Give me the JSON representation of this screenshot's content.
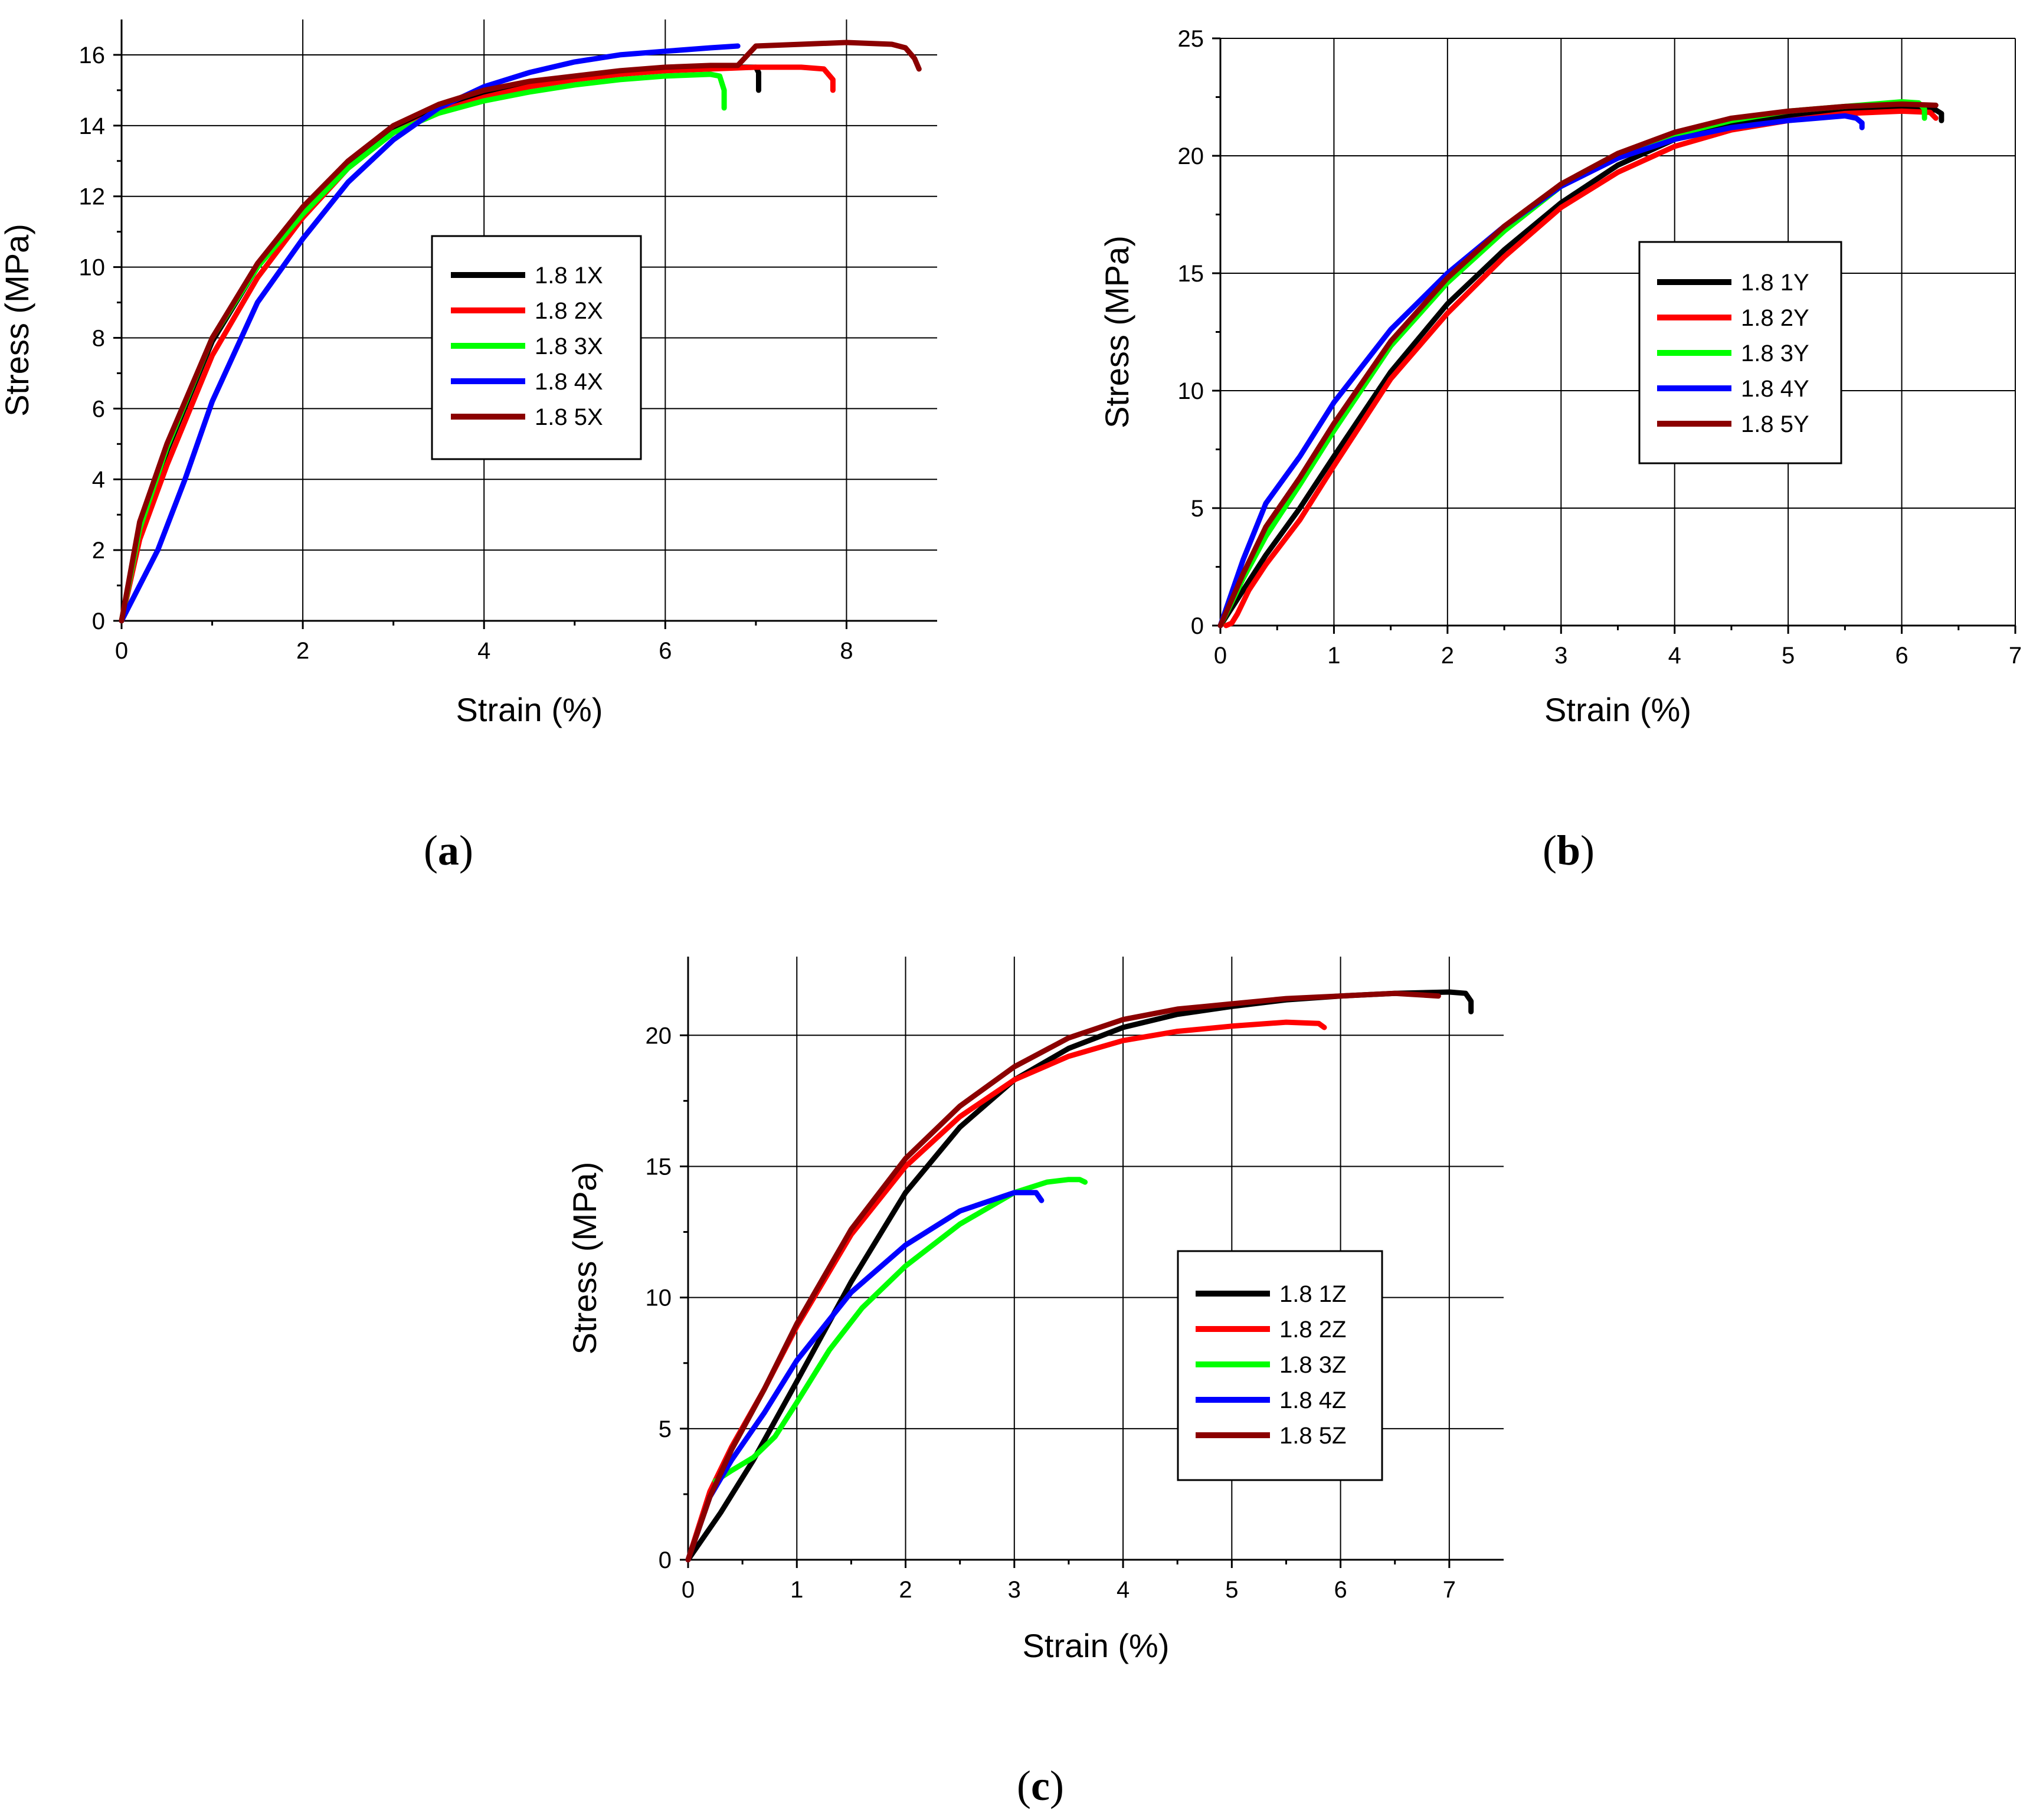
{
  "chart_data": [
    {
      "type": "line",
      "panel": "a",
      "caption_letter": "a",
      "xlabel": "Strain (%)",
      "ylabel": "Stress (MPa)",
      "xlim": [
        0,
        9
      ],
      "ylim": [
        0,
        17
      ],
      "xticks": [
        0,
        2,
        4,
        6,
        8
      ],
      "yticks": [
        0,
        2,
        4,
        6,
        8,
        10,
        12,
        14,
        16
      ],
      "grid": true,
      "legend_position": "center-right",
      "series": [
        {
          "name": "1.8 1X",
          "color": "#000000",
          "x": [
            0,
            0.2,
            0.5,
            1.0,
            1.5,
            2.0,
            2.5,
            3.0,
            3.5,
            4.0,
            4.5,
            5.0,
            5.5,
            6.0,
            6.5,
            7.0,
            7.03,
            7.03
          ],
          "y": [
            0,
            2.5,
            4.8,
            7.9,
            10.0,
            11.6,
            12.9,
            13.9,
            14.5,
            14.9,
            15.15,
            15.35,
            15.5,
            15.6,
            15.65,
            15.65,
            15.5,
            15.0
          ]
        },
        {
          "name": "1.8 2X",
          "color": "#ff0000",
          "x": [
            0,
            0.2,
            0.5,
            1.0,
            1.5,
            2.0,
            2.5,
            3.0,
            3.5,
            4.0,
            4.5,
            5.0,
            5.5,
            6.0,
            6.5,
            7.0,
            7.5,
            7.75,
            7.85,
            7.85
          ],
          "y": [
            0,
            2.3,
            4.4,
            7.5,
            9.7,
            11.4,
            12.8,
            13.8,
            14.4,
            14.8,
            15.1,
            15.3,
            15.45,
            15.55,
            15.6,
            15.65,
            15.65,
            15.6,
            15.3,
            15.0
          ]
        },
        {
          "name": "1.8 3X",
          "color": "#00ff00",
          "x": [
            0,
            0.2,
            0.5,
            1.0,
            1.5,
            2.0,
            2.5,
            3.0,
            3.5,
            4.0,
            4.5,
            5.0,
            5.5,
            6.0,
            6.5,
            6.6,
            6.65,
            6.65
          ],
          "y": [
            0,
            2.6,
            4.9,
            8.0,
            10.0,
            11.5,
            12.8,
            13.8,
            14.35,
            14.7,
            14.95,
            15.15,
            15.3,
            15.4,
            15.45,
            15.4,
            15.0,
            14.5
          ]
        },
        {
          "name": "1.8 4X",
          "color": "#0000ff",
          "x": [
            0,
            0.4,
            0.7,
            1.0,
            1.5,
            2.0,
            2.5,
            3.0,
            3.5,
            4.0,
            4.5,
            5.0,
            5.5,
            6.0,
            6.5,
            6.8
          ],
          "y": [
            0,
            2.0,
            4.0,
            6.2,
            9.0,
            10.8,
            12.4,
            13.6,
            14.5,
            15.1,
            15.5,
            15.8,
            16.0,
            16.1,
            16.2,
            16.25
          ]
        },
        {
          "name": "1.8 5X",
          "color": "#8b0000",
          "x": [
            0,
            0.2,
            0.5,
            1.0,
            1.5,
            2.0,
            2.5,
            3.0,
            3.5,
            4.0,
            4.5,
            5.0,
            5.5,
            6.0,
            6.5,
            6.8,
            7.0,
            7.5,
            8.0,
            8.5,
            8.65,
            8.75,
            8.8
          ],
          "y": [
            0,
            2.8,
            5.0,
            8.0,
            10.1,
            11.7,
            13.0,
            14.0,
            14.6,
            15.0,
            15.25,
            15.4,
            15.55,
            15.65,
            15.7,
            15.7,
            16.25,
            16.3,
            16.35,
            16.3,
            16.2,
            15.9,
            15.6
          ]
        }
      ]
    },
    {
      "type": "line",
      "panel": "b",
      "caption_letter": "b",
      "xlabel": "Strain (%)",
      "ylabel": "Stress (MPa)",
      "xlim": [
        0,
        7
      ],
      "ylim": [
        0,
        25
      ],
      "xticks": [
        0,
        1,
        2,
        3,
        4,
        5,
        6,
        7
      ],
      "yticks": [
        0,
        5,
        10,
        15,
        20,
        25
      ],
      "grid": true,
      "legend_position": "center-right",
      "series": [
        {
          "name": "1.8 1Y",
          "color": "#000000",
          "x": [
            0,
            0.2,
            0.4,
            0.7,
            1.0,
            1.5,
            2.0,
            2.5,
            3.0,
            3.5,
            4.0,
            4.5,
            5.0,
            5.5,
            6.0,
            6.3,
            6.35,
            6.35
          ],
          "y": [
            0,
            1.5,
            3.0,
            5.0,
            7.2,
            10.8,
            13.7,
            16.0,
            18.0,
            19.6,
            20.7,
            21.3,
            21.7,
            21.9,
            22.0,
            21.95,
            21.8,
            21.5
          ]
        },
        {
          "name": "1.8 2Y",
          "color": "#ff0000",
          "x": [
            0.05,
            0.1,
            0.15,
            0.25,
            0.4,
            0.7,
            1.0,
            1.5,
            2.0,
            2.5,
            3.0,
            3.5,
            4.0,
            4.5,
            5.0,
            5.5,
            6.0,
            6.25,
            6.3
          ],
          "y": [
            0,
            0.1,
            0.5,
            1.5,
            2.6,
            4.5,
            6.8,
            10.5,
            13.3,
            15.7,
            17.8,
            19.3,
            20.4,
            21.1,
            21.5,
            21.8,
            21.9,
            21.85,
            21.6
          ]
        },
        {
          "name": "1.8 3Y",
          "color": "#00ff00",
          "x": [
            0,
            0.2,
            0.4,
            0.7,
            1.0,
            1.5,
            2.0,
            2.5,
            3.0,
            3.5,
            4.0,
            4.5,
            5.0,
            5.5,
            6.0,
            6.15,
            6.2,
            6.2
          ],
          "y": [
            0,
            2.0,
            3.8,
            6.0,
            8.3,
            11.9,
            14.6,
            16.8,
            18.7,
            20.0,
            20.9,
            21.5,
            21.9,
            22.1,
            22.3,
            22.25,
            22.0,
            21.6
          ]
        },
        {
          "name": "1.8 4Y",
          "color": "#0000ff",
          "x": [
            0,
            0.2,
            0.4,
            0.7,
            1.0,
            1.5,
            2.0,
            2.5,
            3.0,
            3.5,
            4.0,
            4.5,
            5.0,
            5.5,
            5.6,
            5.65,
            5.65
          ],
          "y": [
            0,
            2.8,
            5.2,
            7.2,
            9.5,
            12.6,
            15.0,
            17.0,
            18.7,
            19.9,
            20.7,
            21.2,
            21.5,
            21.7,
            21.6,
            21.4,
            21.2
          ]
        },
        {
          "name": "1.8 5Y",
          "color": "#8b0000",
          "x": [
            0,
            0.2,
            0.4,
            0.7,
            1.0,
            1.5,
            2.0,
            2.5,
            3.0,
            3.5,
            4.0,
            4.5,
            5.0,
            5.5,
            6.0,
            6.3
          ],
          "y": [
            0,
            2.2,
            4.2,
            6.3,
            8.6,
            12.1,
            14.8,
            17.0,
            18.8,
            20.1,
            21.0,
            21.6,
            21.9,
            22.1,
            22.2,
            22.15
          ]
        }
      ]
    },
    {
      "type": "line",
      "panel": "c",
      "caption_letter": "c",
      "xlabel": "Strain (%)",
      "ylabel": "Stress (MPa)",
      "xlim": [
        0,
        7.5
      ],
      "ylim": [
        0,
        23
      ],
      "xticks": [
        0,
        1,
        2,
        3,
        4,
        5,
        6,
        7
      ],
      "yticks": [
        0,
        5,
        10,
        15,
        20
      ],
      "grid": true,
      "legend_position": "center-right",
      "series": [
        {
          "name": "1.8 1Z",
          "color": "#000000",
          "x": [
            0,
            0.3,
            0.6,
            1.0,
            1.5,
            2.0,
            2.5,
            3.0,
            3.5,
            4.0,
            4.5,
            5.0,
            5.5,
            6.0,
            6.5,
            7.0,
            7.15,
            7.2,
            7.2
          ],
          "y": [
            0,
            1.8,
            3.8,
            6.8,
            10.6,
            14.0,
            16.5,
            18.3,
            19.5,
            20.3,
            20.8,
            21.1,
            21.35,
            21.5,
            21.6,
            21.65,
            21.6,
            21.3,
            20.9
          ]
        },
        {
          "name": "1.8 2Z",
          "color": "#ff0000",
          "x": [
            0,
            0.2,
            0.4,
            0.7,
            1.0,
            1.5,
            2.0,
            2.5,
            3.0,
            3.5,
            4.0,
            4.5,
            5.0,
            5.5,
            5.8,
            5.85
          ],
          "y": [
            0,
            2.6,
            4.3,
            6.5,
            8.9,
            12.4,
            15.0,
            16.9,
            18.3,
            19.2,
            19.8,
            20.15,
            20.35,
            20.5,
            20.45,
            20.3
          ]
        },
        {
          "name": "1.8 3Z",
          "color": "#00ff00",
          "x": [
            0.25,
            0.4,
            0.6,
            0.8,
            1.0,
            1.3,
            1.6,
            2.0,
            2.5,
            3.0,
            3.3,
            3.5,
            3.6,
            3.65
          ],
          "y": [
            3.0,
            3.4,
            3.9,
            4.7,
            6.0,
            8.0,
            9.6,
            11.2,
            12.8,
            14.0,
            14.4,
            14.5,
            14.5,
            14.4
          ]
        },
        {
          "name": "1.8 4Z",
          "color": "#0000ff",
          "x": [
            0,
            0.2,
            0.4,
            0.7,
            1.0,
            1.5,
            2.0,
            2.5,
            3.0,
            3.2,
            3.25
          ],
          "y": [
            0,
            2.4,
            3.8,
            5.6,
            7.6,
            10.2,
            12.0,
            13.3,
            14.0,
            14.0,
            13.7
          ]
        },
        {
          "name": "1.8 5Z",
          "color": "#8b0000",
          "x": [
            0,
            0.2,
            0.4,
            0.7,
            1.0,
            1.5,
            2.0,
            2.5,
            3.0,
            3.5,
            4.0,
            4.5,
            5.0,
            5.5,
            6.0,
            6.5,
            6.9
          ],
          "y": [
            0,
            2.4,
            4.2,
            6.5,
            9.0,
            12.6,
            15.3,
            17.3,
            18.8,
            19.9,
            20.6,
            21.0,
            21.2,
            21.4,
            21.5,
            21.6,
            21.5
          ]
        }
      ]
    }
  ]
}
